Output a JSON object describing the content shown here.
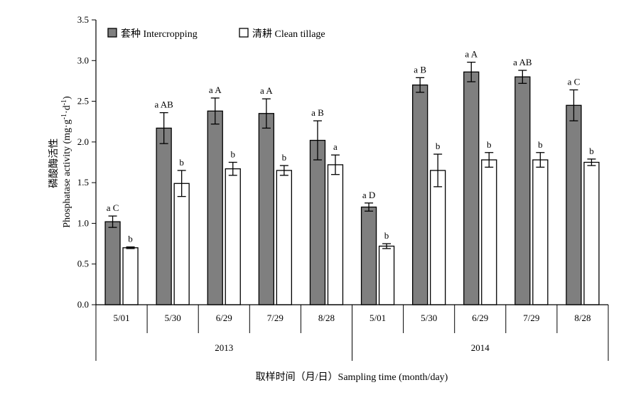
{
  "chart_data": {
    "type": "bar",
    "title": "",
    "ylabel": "磷酸酶活性",
    "ylabel_en": "Phosphatase activity (mg·g",
    "ylabel_unit_parts": [
      "-1",
      "·d",
      "-1",
      ")"
    ],
    "xlabel": "取样时间（月/日）Sampling time (month/day)",
    "ylim": [
      0,
      3.5
    ],
    "yticks": [
      "0.0",
      "0.5",
      "1.0",
      "1.5",
      "2.0",
      "2.5",
      "3.0",
      "3.5"
    ],
    "categories": [
      "5/01",
      "5/30",
      "6/29",
      "7/29",
      "8/28",
      "5/01",
      "5/30",
      "6/29",
      "7/29",
      "8/28"
    ],
    "groups": [
      {
        "label": "2013",
        "start": 0,
        "end": 4
      },
      {
        "label": "2014",
        "start": 5,
        "end": 9
      }
    ],
    "legend_position": "top-left",
    "series": [
      {
        "name": "套种 Intercropping",
        "color": "#7f7f7f",
        "values": [
          1.02,
          2.17,
          2.38,
          2.35,
          2.02,
          1.2,
          2.7,
          2.86,
          2.8,
          2.45
        ],
        "errors": [
          0.07,
          0.19,
          0.16,
          0.18,
          0.24,
          0.05,
          0.09,
          0.12,
          0.08,
          0.19
        ],
        "labels": [
          "a C",
          "a AB",
          "a A",
          "a A",
          "a B",
          "a D",
          "a B",
          "a A",
          "a AB",
          "a C"
        ]
      },
      {
        "name": "清耕 Clean tillage",
        "color": "#ffffff",
        "values": [
          0.7,
          1.49,
          1.67,
          1.65,
          1.72,
          0.72,
          1.65,
          1.78,
          1.78,
          1.75
        ],
        "errors": [
          0.01,
          0.16,
          0.08,
          0.06,
          0.12,
          0.03,
          0.2,
          0.09,
          0.09,
          0.04
        ],
        "labels": [
          "b",
          "b",
          "b",
          "b",
          "a",
          "b",
          "b",
          "b",
          "b",
          "b"
        ]
      }
    ]
  }
}
